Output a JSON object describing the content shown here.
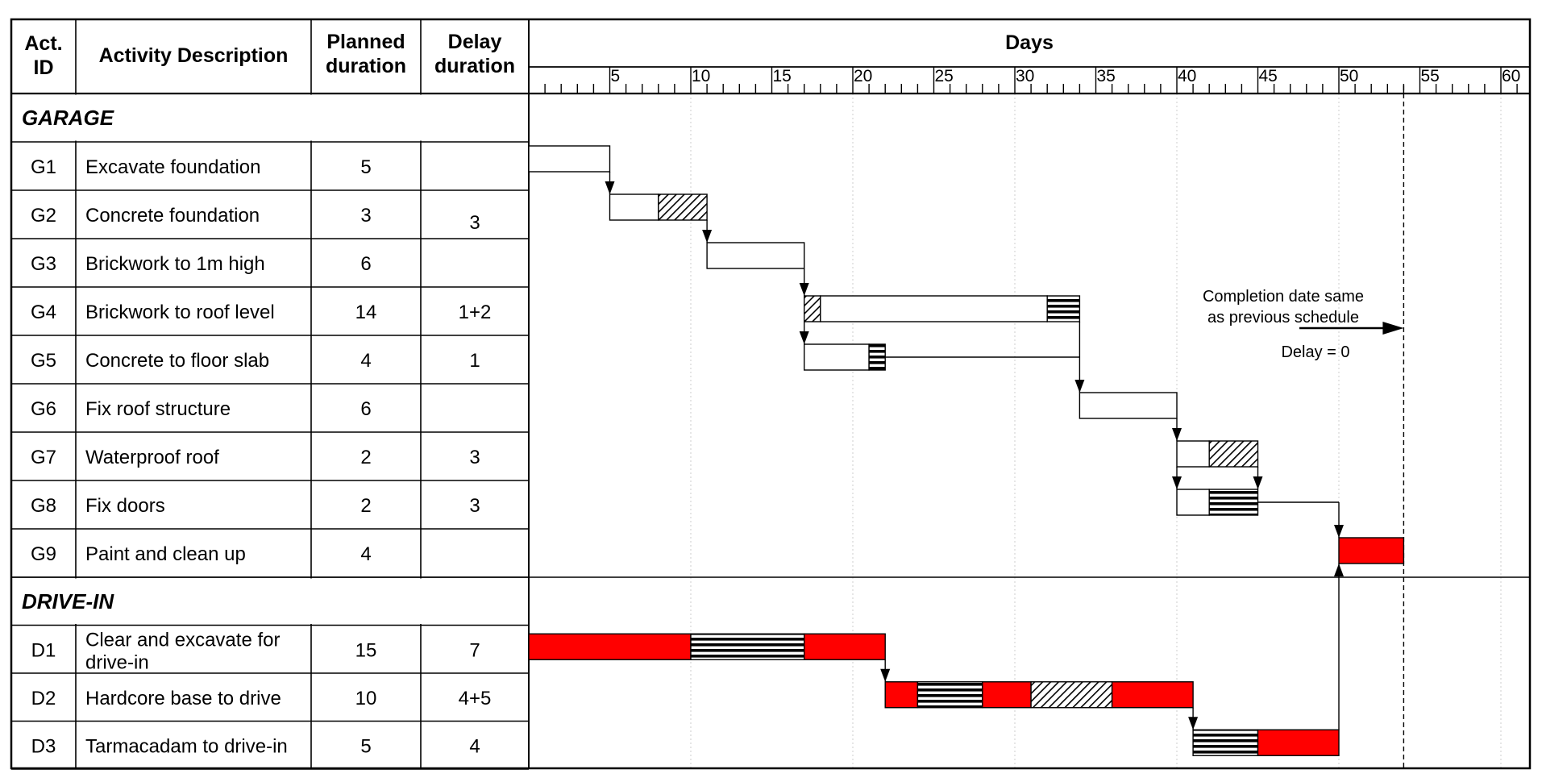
{
  "chart_data": {
    "type": "gantt",
    "columns": {
      "id": "Act.\nID",
      "description": "Activity Description",
      "planned": "Planned\nduration",
      "delay": "Delay\nduration",
      "timeline": "Days"
    },
    "x_ticks": [
      5,
      10,
      15,
      20,
      25,
      30,
      35,
      40,
      45,
      50,
      55,
      60
    ],
    "xlim": [
      0,
      61
    ],
    "groups": [
      {
        "name": "GARAGE",
        "activities": [
          {
            "id": "G1",
            "desc": [
              "Excavate foundation"
            ],
            "planned": "5",
            "delay": "",
            "segments": [
              {
                "start": 0,
                "end": 5,
                "fill": "white"
              }
            ]
          },
          {
            "id": "G2",
            "desc": [
              "Concrete foundation"
            ],
            "planned": "3",
            "delay": "3",
            "segments": [
              {
                "start": 5,
                "end": 8,
                "fill": "white"
              },
              {
                "start": 8,
                "end": 11,
                "fill": "hatch"
              }
            ]
          },
          {
            "id": "G3",
            "desc": [
              "Brickwork to 1m high"
            ],
            "planned": "6",
            "delay": "",
            "segments": [
              {
                "start": 11,
                "end": 17,
                "fill": "white"
              }
            ]
          },
          {
            "id": "G4",
            "desc": [
              "Brickwork to roof level"
            ],
            "planned": "14",
            "delay": "1+2",
            "segments": [
              {
                "start": 17,
                "end": 18,
                "fill": "hatch"
              },
              {
                "start": 18,
                "end": 32,
                "fill": "white"
              },
              {
                "start": 32,
                "end": 34,
                "fill": "stripe"
              }
            ]
          },
          {
            "id": "G5",
            "desc": [
              "Concrete to floor slab"
            ],
            "planned": "4",
            "delay": "1",
            "segments": [
              {
                "start": 17,
                "end": 21,
                "fill": "white"
              },
              {
                "start": 21,
                "end": 22,
                "fill": "stripe"
              }
            ]
          },
          {
            "id": "G6",
            "desc": [
              "Fix roof structure"
            ],
            "planned": "6",
            "delay": "",
            "segments": [
              {
                "start": 34,
                "end": 40,
                "fill": "white"
              }
            ]
          },
          {
            "id": "G7",
            "desc": [
              "Waterproof roof"
            ],
            "planned": "2",
            "delay": "3",
            "segments": [
              {
                "start": 40,
                "end": 42,
                "fill": "white"
              },
              {
                "start": 42,
                "end": 45,
                "fill": "hatch"
              }
            ]
          },
          {
            "id": "G8",
            "desc": [
              "Fix doors"
            ],
            "planned": "2",
            "delay": "3",
            "segments": [
              {
                "start": 40,
                "end": 42,
                "fill": "white"
              },
              {
                "start": 42,
                "end": 45,
                "fill": "stripe"
              }
            ]
          },
          {
            "id": "G9",
            "desc": [
              "Paint and clean up"
            ],
            "planned": "4",
            "delay": "",
            "segments": [
              {
                "start": 50,
                "end": 54,
                "fill": "red"
              }
            ]
          }
        ]
      },
      {
        "name": "DRIVE-IN",
        "activities": [
          {
            "id": "D1",
            "desc": [
              "Clear and excavate for",
              "drive-in"
            ],
            "planned": "15",
            "delay": "7",
            "segments": [
              {
                "start": 0,
                "end": 10,
                "fill": "red"
              },
              {
                "start": 10,
                "end": 17,
                "fill": "stripe"
              },
              {
                "start": 17,
                "end": 22,
                "fill": "red"
              }
            ]
          },
          {
            "id": "D2",
            "desc": [
              "Hardcore base to drive"
            ],
            "planned": "10",
            "delay": "4+5",
            "segments": [
              {
                "start": 22,
                "end": 24,
                "fill": "red"
              },
              {
                "start": 24,
                "end": 28,
                "fill": "stripe"
              },
              {
                "start": 28,
                "end": 31,
                "fill": "red"
              },
              {
                "start": 31,
                "end": 36,
                "fill": "hatch"
              },
              {
                "start": 36,
                "end": 41,
                "fill": "red"
              }
            ]
          },
          {
            "id": "D3",
            "desc": [
              "Tarmacadam to drive-in"
            ],
            "planned": "5",
            "delay": "4",
            "segments": [
              {
                "start": 41,
                "end": 45,
                "fill": "stripe"
              },
              {
                "start": 45,
                "end": 50,
                "fill": "red"
              }
            ]
          }
        ]
      }
    ],
    "links": [
      {
        "from": "G1",
        "to": "G2",
        "at": 5
      },
      {
        "from": "G2",
        "to": "G3",
        "at": 11
      },
      {
        "from": "G3",
        "to": "G4",
        "at": 17
      },
      {
        "from": "G4",
        "to": "G5",
        "at": 17
      },
      {
        "from": "G5",
        "to": "G6",
        "at": 34
      },
      {
        "from": "G6",
        "to": "G7",
        "at": 40
      },
      {
        "from": "G7",
        "to": "G8",
        "at": 40
      },
      {
        "from": "G7",
        "to": "G8",
        "at": 45
      },
      {
        "from": "G8",
        "to": "G9",
        "at": 50
      },
      {
        "from": "D3",
        "to": "G9",
        "at": 50
      },
      {
        "from": "D1",
        "to": "D2",
        "at": 22
      },
      {
        "from": "D2",
        "to": "D3",
        "at": 41
      }
    ],
    "completion_day": 54,
    "annotation": {
      "lines": [
        "Completion date same",
        "as previous schedule"
      ],
      "delay_text": "Delay = 0"
    },
    "colors": {
      "critical": "#ff0000",
      "normal": "#ffffff",
      "line": "#000000",
      "grid": "#cccccc"
    }
  }
}
